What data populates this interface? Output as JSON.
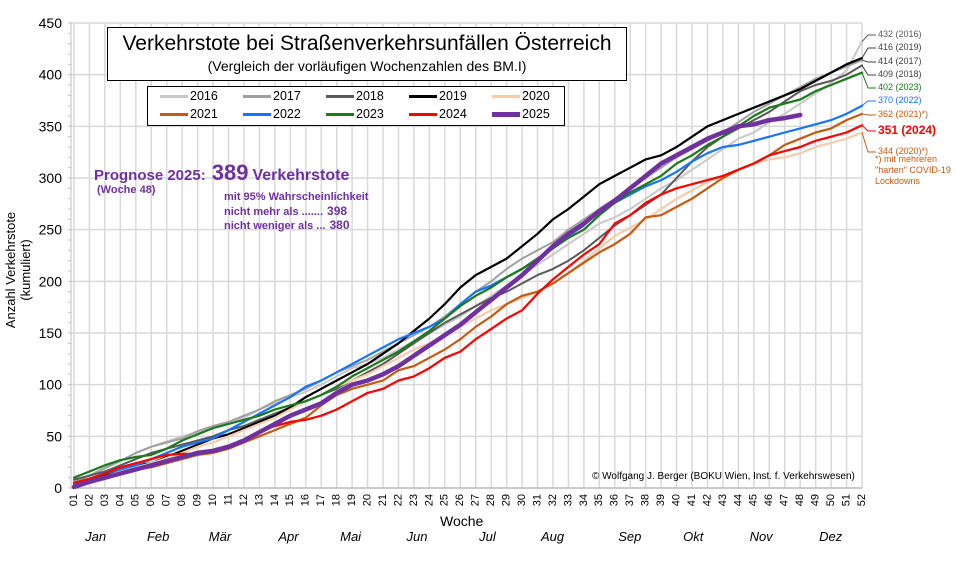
{
  "chart_data": {
    "type": "line",
    "title": "Verkehrstote bei Straßenverkehrsunfällen Österreich",
    "subtitle": "(Vergleich der vorläufigen Wochenzahlen des BM.I)",
    "xlabel": "Woche",
    "ylabel": "Anzahl Verkehrstote (kumuliert)",
    "ylim": [
      0,
      450
    ],
    "yticks": [
      0,
      50,
      100,
      150,
      200,
      250,
      300,
      350,
      400,
      450
    ],
    "grid": true,
    "legend_position": "top-left",
    "x": [
      "01",
      "02",
      "03",
      "04",
      "05",
      "06",
      "07",
      "08",
      "09",
      "10",
      "11",
      "12",
      "13",
      "14",
      "15",
      "16",
      "17",
      "18",
      "19",
      "20",
      "21",
      "22",
      "23",
      "24",
      "25",
      "26",
      "27",
      "28",
      "29",
      "30",
      "31",
      "32",
      "33",
      "34",
      "35",
      "36",
      "37",
      "38",
      "39",
      "40",
      "41",
      "42",
      "43",
      "44",
      "45",
      "46",
      "47",
      "48",
      "49",
      "50",
      "51",
      "52"
    ],
    "months": [
      {
        "label": "Jan",
        "week": 2.5
      },
      {
        "label": "Feb",
        "week": 6.5
      },
      {
        "label": "Mär",
        "week": 10.5
      },
      {
        "label": "Apr",
        "week": 15.0
      },
      {
        "label": "Mai",
        "week": 19.0
      },
      {
        "label": "Jun",
        "week": 23.3
      },
      {
        "label": "Jul",
        "week": 28.0
      },
      {
        "label": "Aug",
        "week": 32.0
      },
      {
        "label": "Sep",
        "week": 37.0
      },
      {
        "label": "Okt",
        "week": 41.2
      },
      {
        "label": "Nov",
        "week": 45.5
      },
      {
        "label": "Dez",
        "week": 50.0
      }
    ],
    "series": [
      {
        "name": "2016",
        "color": "#C8C8C8",
        "width": 2,
        "values": [
          5,
          12,
          20,
          26,
          34,
          40,
          45,
          50,
          54,
          58,
          62,
          68,
          76,
          82,
          88,
          93,
          100,
          108,
          116,
          120,
          126,
          134,
          142,
          150,
          158,
          166,
          176,
          186,
          196,
          206,
          216,
          226,
          236,
          246,
          256,
          262,
          270,
          280,
          290,
          298,
          308,
          318,
          328,
          338,
          344,
          354,
          362,
          372,
          382,
          392,
          404,
          432
        ]
      },
      {
        "name": "2017",
        "color": "#A0A0A0",
        "width": 2,
        "values": [
          6,
          12,
          19,
          26,
          34,
          40,
          44,
          48,
          55,
          60,
          64,
          70,
          76,
          84,
          90,
          96,
          104,
          112,
          118,
          124,
          132,
          140,
          148,
          156,
          166,
          178,
          190,
          200,
          212,
          222,
          230,
          238,
          250,
          260,
          270,
          280,
          290,
          300,
          310,
          320,
          328,
          336,
          344,
          354,
          364,
          372,
          380,
          388,
          396,
          402,
          408,
          414
        ]
      },
      {
        "name": "2018",
        "color": "#595959",
        "width": 2,
        "values": [
          8,
          12,
          16,
          22,
          28,
          34,
          38,
          42,
          46,
          50,
          56,
          60,
          66,
          72,
          78,
          84,
          90,
          96,
          104,
          112,
          120,
          130,
          140,
          150,
          160,
          168,
          176,
          184,
          190,
          198,
          206,
          212,
          220,
          230,
          242,
          254,
          264,
          274,
          284,
          300,
          316,
          330,
          340,
          348,
          356,
          364,
          374,
          384,
          390,
          394,
          400,
          409
        ]
      },
      {
        "name": "2019",
        "color": "#000000",
        "width": 2.2,
        "values": [
          3,
          7,
          12,
          18,
          22,
          24,
          30,
          36,
          42,
          48,
          52,
          58,
          64,
          70,
          78,
          88,
          96,
          104,
          112,
          120,
          130,
          140,
          152,
          164,
          178,
          194,
          206,
          214,
          222,
          234,
          246,
          260,
          270,
          282,
          294,
          302,
          310,
          318,
          322,
          330,
          340,
          350,
          356,
          362,
          368,
          374,
          380,
          386,
          394,
          402,
          410,
          416
        ]
      },
      {
        "name": "2020",
        "color": "#F8CBAD",
        "width": 2.2,
        "values": [
          4,
          7,
          11,
          16,
          20,
          24,
          29,
          34,
          40,
          44,
          50,
          56,
          62,
          68,
          76,
          84,
          90,
          98,
          104,
          110,
          118,
          126,
          134,
          140,
          148,
          156,
          164,
          172,
          178,
          184,
          190,
          198,
          208,
          220,
          232,
          244,
          252,
          260,
          270,
          280,
          288,
          296,
          302,
          308,
          314,
          318,
          320,
          324,
          330,
          334,
          338,
          344
        ]
      },
      {
        "name": "2021",
        "color": "#C55A11",
        "width": 2.2,
        "values": [
          3,
          6,
          10,
          14,
          18,
          20,
          24,
          28,
          32,
          34,
          38,
          44,
          50,
          56,
          62,
          68,
          80,
          90,
          96,
          100,
          104,
          114,
          118,
          126,
          134,
          144,
          156,
          166,
          178,
          186,
          190,
          198,
          208,
          218,
          228,
          236,
          246,
          262,
          264,
          272,
          280,
          290,
          300,
          308,
          314,
          322,
          332,
          338,
          344,
          348,
          356,
          362
        ]
      },
      {
        "name": "2022",
        "color": "#1874FF",
        "width": 2.2,
        "values": [
          4,
          9,
          14,
          18,
          22,
          28,
          34,
          40,
          44,
          48,
          56,
          64,
          72,
          80,
          88,
          98,
          104,
          112,
          120,
          128,
          136,
          144,
          150,
          156,
          164,
          178,
          190,
          196,
          204,
          212,
          222,
          232,
          244,
          254,
          268,
          276,
          284,
          292,
          298,
          306,
          316,
          324,
          330,
          332,
          336,
          340,
          344,
          348,
          352,
          356,
          362,
          370
        ]
      },
      {
        "name": "2023",
        "color": "#1B7A1B",
        "width": 2.2,
        "values": [
          10,
          16,
          22,
          27,
          30,
          32,
          38,
          46,
          52,
          58,
          62,
          66,
          70,
          76,
          80,
          84,
          90,
          98,
          108,
          116,
          124,
          132,
          142,
          152,
          164,
          176,
          186,
          194,
          204,
          212,
          222,
          232,
          242,
          250,
          264,
          276,
          286,
          294,
          302,
          314,
          322,
          332,
          340,
          350,
          360,
          368,
          372,
          376,
          384,
          390,
          396,
          402
        ]
      },
      {
        "name": "2024",
        "color": "#FF0000",
        "width": 2.2,
        "values": [
          5,
          9,
          14,
          20,
          24,
          28,
          32,
          33,
          33,
          36,
          40,
          46,
          54,
          60,
          64,
          66,
          70,
          76,
          84,
          92,
          96,
          104,
          108,
          116,
          126,
          132,
          144,
          154,
          164,
          172,
          188,
          202,
          214,
          226,
          236,
          256,
          264,
          276,
          284,
          290,
          294,
          298,
          302,
          308,
          314,
          322,
          326,
          330,
          336,
          340,
          344,
          351
        ]
      },
      {
        "name": "2025",
        "color": "#7030A0",
        "width": 4.5,
        "values": [
          1,
          6,
          10,
          14,
          18,
          22,
          26,
          30,
          34,
          36,
          40,
          46,
          54,
          62,
          70,
          76,
          82,
          92,
          100,
          104,
          110,
          118,
          128,
          138,
          148,
          158,
          170,
          182,
          194,
          206,
          220,
          234,
          246,
          256,
          268,
          278,
          290,
          302,
          314,
          322,
          330,
          338,
          344,
          350,
          352,
          356,
          358,
          361,
          null,
          null,
          null,
          null
        ]
      }
    ],
    "end_labels": [
      {
        "text": "432 (2016)",
        "color": "#595959",
        "value": 432,
        "bold": false
      },
      {
        "text": "416 (2019)",
        "color": "#404040",
        "value": 416,
        "bold": false
      },
      {
        "text": "414 (2017)",
        "color": "#404040",
        "value": 414,
        "bold": false
      },
      {
        "text": "409 (2018)",
        "color": "#404040",
        "value": 409,
        "bold": false
      },
      {
        "text": "402 (2023)",
        "color": "#1B7A1B",
        "value": 402,
        "bold": false
      },
      {
        "text": "370 (2022)",
        "color": "#1874FF",
        "value": 370,
        "bold": false
      },
      {
        "text": "362 (2021)*)",
        "color": "#C55A11",
        "value": 362,
        "bold": false
      },
      {
        "text": "351 (2024)",
        "color": "#FF0000",
        "value": 351,
        "bold": true
      },
      {
        "text": "344 (2020)*)",
        "color": "#C55A11",
        "value": 344,
        "bold": false
      }
    ],
    "annotations": {
      "prognose_label": "Prognose 2025:",
      "prognose_value": "389",
      "prognose_unit": "Verkehrstote",
      "prognose_week": "(Woche 48)",
      "confidence_line": "mit 95% Wahrscheinlichkeit",
      "upper_label": "nicht mehr als .......",
      "upper_value": "398",
      "lower_label": "nicht weniger als ...",
      "lower_value": "380",
      "footnote": "*) mit mehreren \"harten\" COVID-19 Lockdowns",
      "copyright": "© Wolfgang J. Berger (BOKU Wien, Inst. f. Verkehrswesen)"
    }
  }
}
